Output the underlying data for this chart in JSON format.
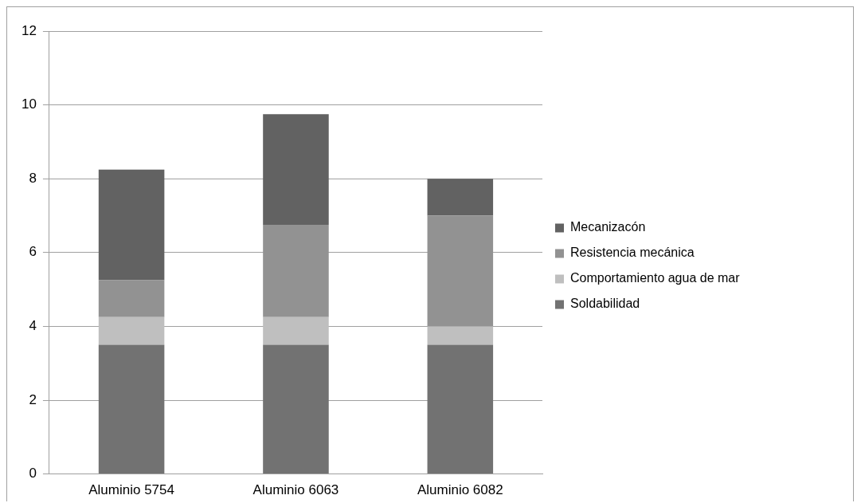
{
  "chart_data": {
    "type": "bar",
    "stacked": true,
    "categories": [
      "Aluminio 5754",
      "Aluminio 6063",
      "Aluminio 6082"
    ],
    "series": [
      {
        "name": "Soldabilidad",
        "color": "#727272",
        "values": [
          3.5,
          3.5,
          3.5
        ]
      },
      {
        "name": "Comportamiento agua de mar",
        "color": "#bfbfbf",
        "values": [
          0.75,
          0.75,
          0.5
        ]
      },
      {
        "name": "Resistencia mecánica",
        "color": "#929292",
        "values": [
          1,
          2.5,
          3
        ]
      },
      {
        "name": "Mecanizacón",
        "color": "#626262",
        "values": [
          3,
          3,
          1
        ]
      }
    ],
    "ylim": [
      0,
      12
    ],
    "yticks": [
      0,
      2,
      4,
      6,
      8,
      10,
      12
    ],
    "grid": "y",
    "legend": "right"
  }
}
